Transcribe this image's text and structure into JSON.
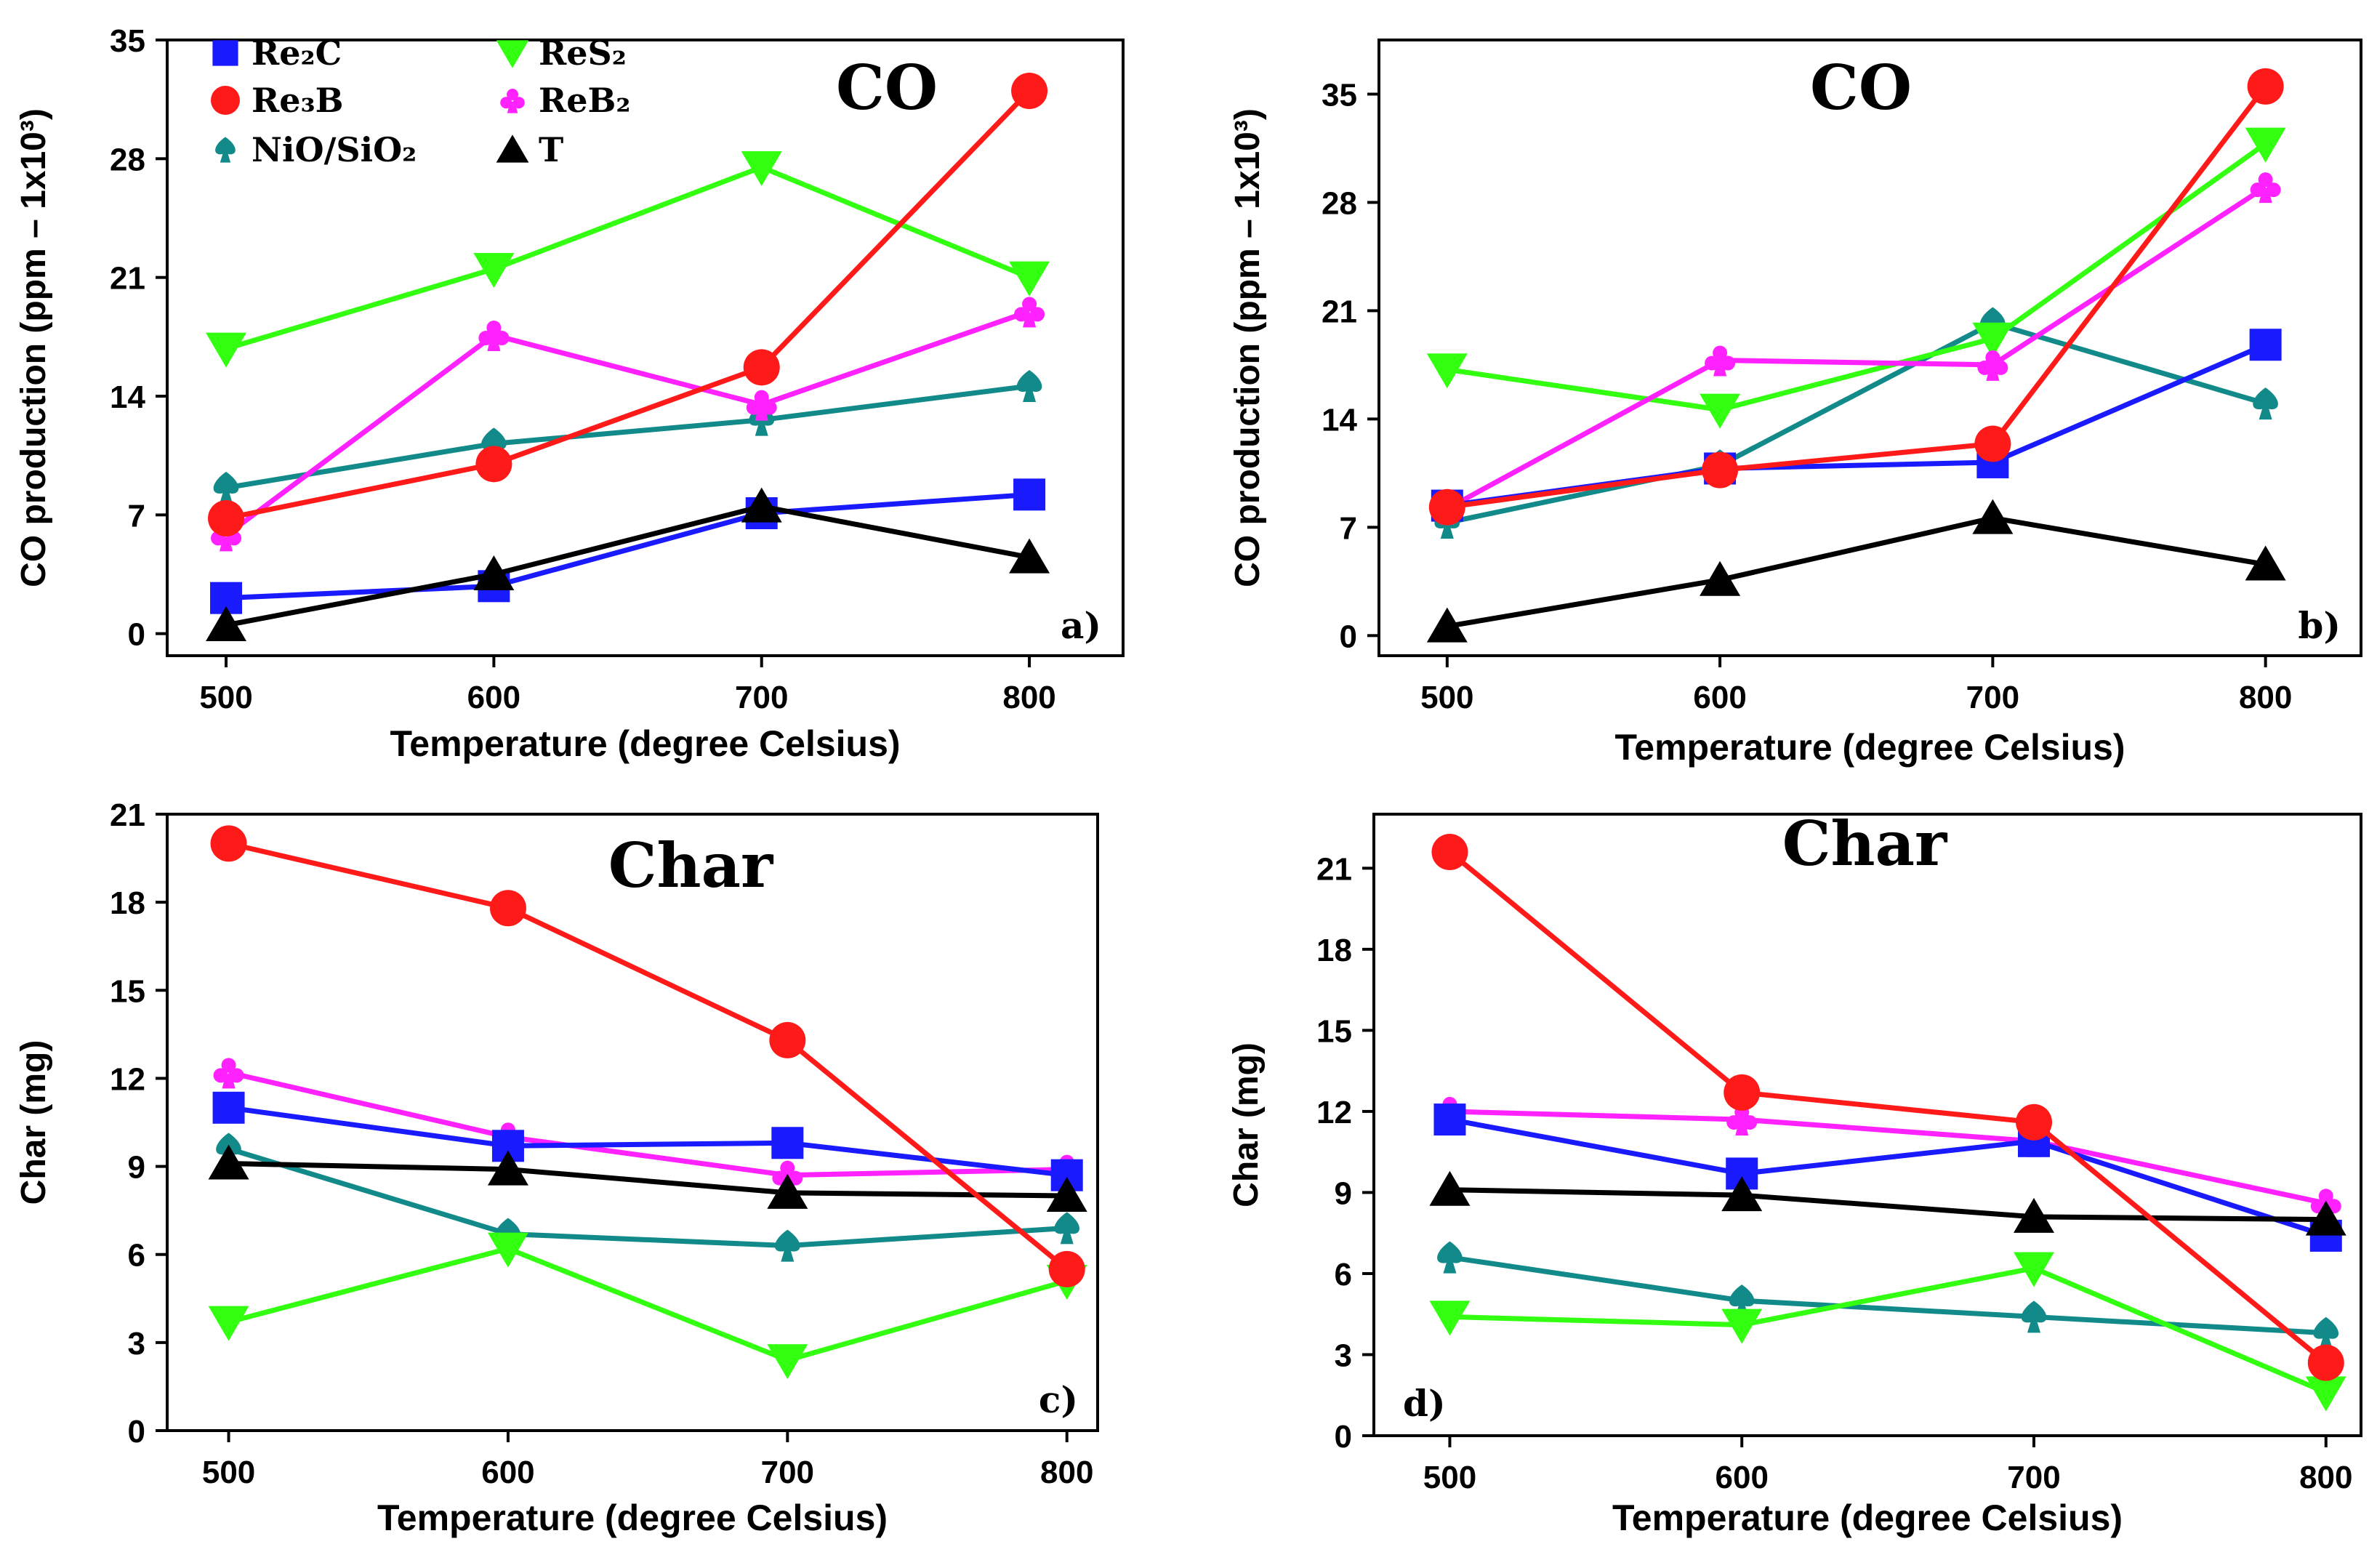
{
  "series_styles": [
    {
      "key": "re2c",
      "legend": "Re₂C",
      "color": "#1a1aff",
      "marker": "square"
    },
    {
      "key": "re3b",
      "legend": "Re₃B",
      "color": "#ff1a1a",
      "marker": "circle"
    },
    {
      "key": "nio",
      "legend": "NiO/SiO₂",
      "color": "#138a8a",
      "marker": "spade"
    },
    {
      "key": "res2",
      "legend": "ReS₂",
      "color": "#33ff11",
      "marker": "triangle-down"
    },
    {
      "key": "reb2",
      "legend": "ReB₂",
      "color": "#ff22ff",
      "marker": "club"
    },
    {
      "key": "t",
      "legend": "T",
      "color": "#000000",
      "marker": "triangle-up"
    }
  ],
  "chart_data": [
    {
      "panel": "a",
      "type": "line",
      "title": "CO",
      "tag": "a)",
      "xlabel": "Temperature (degree Celsius)",
      "ylabel": "CO production (ppm – 1x10³)",
      "x": [
        500,
        600,
        700,
        800
      ],
      "xticks": [
        "500",
        "600",
        "700",
        "800"
      ],
      "xlim": [
        478,
        835
      ],
      "ylim": [
        -1.3,
        35
      ],
      "yticks": [
        0,
        7,
        14,
        21,
        28,
        35
      ],
      "ytick_labels": [
        "0",
        "7",
        "14",
        "21",
        "28",
        "35"
      ],
      "legend": "top-left",
      "series": [
        {
          "key": "re2c",
          "values": [
            2.1,
            2.8,
            7.1,
            8.2
          ]
        },
        {
          "key": "re3b",
          "values": [
            6.8,
            10.0,
            15.7,
            32.0
          ]
        },
        {
          "key": "nio",
          "values": [
            8.6,
            11.2,
            12.6,
            14.6
          ]
        },
        {
          "key": "res2",
          "values": [
            16.8,
            21.5,
            27.5,
            21.0
          ]
        },
        {
          "key": "reb2",
          "values": [
            5.8,
            17.6,
            13.5,
            19.0
          ]
        },
        {
          "key": "t",
          "values": [
            0.5,
            3.5,
            7.5,
            4.5
          ]
        }
      ]
    },
    {
      "panel": "b",
      "type": "line",
      "title": "CO",
      "tag": "b)",
      "xlabel": "Temperature (degree Celsius)",
      "ylabel": "CO production (ppm – 1x10³)",
      "x": [
        500,
        600,
        700,
        800
      ],
      "xticks": [
        "500",
        "600",
        "700",
        "800"
      ],
      "xlim": [
        475,
        835
      ],
      "ylim": [
        -1.3,
        38.5
      ],
      "yticks": [
        0,
        7,
        14,
        21,
        28,
        35
      ],
      "ytick_labels": [
        "0",
        "7",
        "14",
        "21",
        "28",
        "35"
      ],
      "series": [
        {
          "key": "re2c",
          "values": [
            8.4,
            10.8,
            11.2,
            18.8
          ]
        },
        {
          "key": "re3b",
          "values": [
            8.3,
            10.7,
            12.4,
            35.5
          ]
        },
        {
          "key": "nio",
          "values": [
            7.3,
            11.0,
            20.2,
            15.0
          ]
        },
        {
          "key": "res2",
          "values": [
            17.2,
            14.6,
            19.2,
            31.8
          ]
        },
        {
          "key": "reb2",
          "values": [
            8.2,
            17.8,
            17.5,
            29.0
          ]
        },
        {
          "key": "t",
          "values": [
            0.6,
            3.6,
            7.6,
            4.6
          ]
        }
      ]
    },
    {
      "panel": "c",
      "type": "line",
      "title": "Char",
      "tag": "c)",
      "xlabel": "Temperature (degree Celsius)",
      "ylabel": "Char (mg)",
      "x": [
        500,
        600,
        700,
        800
      ],
      "xticks": [
        "500",
        "600",
        "700",
        "800"
      ],
      "xlim": [
        478,
        811
      ],
      "ylim": [
        0,
        21
      ],
      "yticks": [
        0,
        3,
        6,
        9,
        12,
        15,
        18,
        21
      ],
      "ytick_labels": [
        "0",
        "3",
        "6",
        "9",
        "12",
        "15",
        "18",
        "21"
      ],
      "series": [
        {
          "key": "re2c",
          "values": [
            11.0,
            9.7,
            9.8,
            8.7
          ]
        },
        {
          "key": "re3b",
          "values": [
            20.0,
            17.8,
            13.3,
            5.5
          ]
        },
        {
          "key": "nio",
          "values": [
            9.6,
            6.7,
            6.3,
            6.9
          ]
        },
        {
          "key": "res2",
          "values": [
            3.7,
            6.2,
            2.4,
            5.1
          ]
        },
        {
          "key": "reb2",
          "values": [
            12.2,
            10.0,
            8.7,
            8.9
          ]
        },
        {
          "key": "t",
          "values": [
            9.1,
            8.9,
            8.1,
            8.0
          ]
        }
      ]
    },
    {
      "panel": "d",
      "type": "line",
      "title": "Char",
      "tag": "d)",
      "xlabel": "Temperature (degree Celsius)",
      "ylabel": "Char (mg)",
      "x": [
        500,
        600,
        700,
        800
      ],
      "xticks": [
        "500",
        "600",
        "700",
        "800"
      ],
      "xlim": [
        474,
        812
      ],
      "ylim": [
        0,
        23
      ],
      "yticks": [
        0,
        3,
        6,
        9,
        12,
        15,
        18,
        21
      ],
      "ytick_labels": [
        "0",
        "3",
        "6",
        "9",
        "12",
        "15",
        "18",
        "21"
      ],
      "series": [
        {
          "key": "re2c",
          "values": [
            11.7,
            9.7,
            10.9,
            7.4
          ]
        },
        {
          "key": "re3b",
          "values": [
            21.6,
            12.7,
            11.6,
            2.7
          ]
        },
        {
          "key": "nio",
          "values": [
            6.6,
            5.0,
            4.4,
            3.8
          ]
        },
        {
          "key": "res2",
          "values": [
            4.4,
            4.1,
            6.2,
            1.6
          ]
        },
        {
          "key": "reb2",
          "values": [
            12.0,
            11.7,
            10.9,
            8.6
          ]
        },
        {
          "key": "t",
          "values": [
            9.1,
            8.9,
            8.1,
            8.0
          ]
        }
      ]
    }
  ]
}
